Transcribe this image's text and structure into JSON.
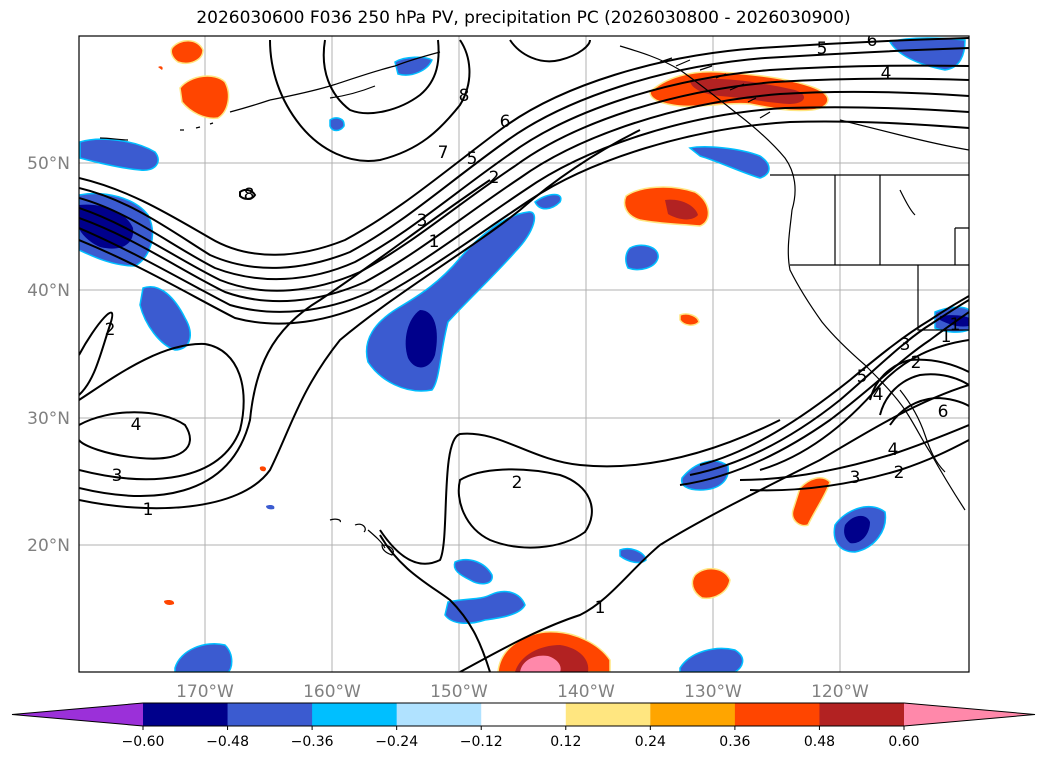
{
  "title": "2026030600 F036 250 hPa PV, precipitation PC (2026030800 - 2026030900)",
  "map": {
    "lat_labels": [
      "50°N",
      "40°N",
      "30°N",
      "20°N"
    ],
    "lon_labels": [
      "170°W",
      "160°W",
      "150°W",
      "140°W",
      "130°W",
      "120°W"
    ],
    "contour_labels": [
      "8",
      "7",
      "6",
      "5",
      "4",
      "3",
      "2",
      "1",
      "2",
      "4",
      "3",
      "1",
      "2",
      "1",
      "6",
      "5",
      "4",
      "3",
      "2",
      "1",
      "6",
      "8",
      "5",
      "4",
      "3",
      "2",
      "1"
    ]
  },
  "colorbar": {
    "ticks": [
      "−0.60",
      "−0.48",
      "−0.36",
      "−0.24",
      "−0.12",
      "0.12",
      "0.24",
      "0.36",
      "0.48",
      "0.60"
    ],
    "colors": [
      "#9b30d9",
      "#00008b",
      "#3b5bd0",
      "#00bfff",
      "#b0e2ff",
      "#ffffff",
      "#ffe680",
      "#ffa500",
      "#ff4500",
      "#b22222",
      "#ff88aa"
    ]
  }
}
